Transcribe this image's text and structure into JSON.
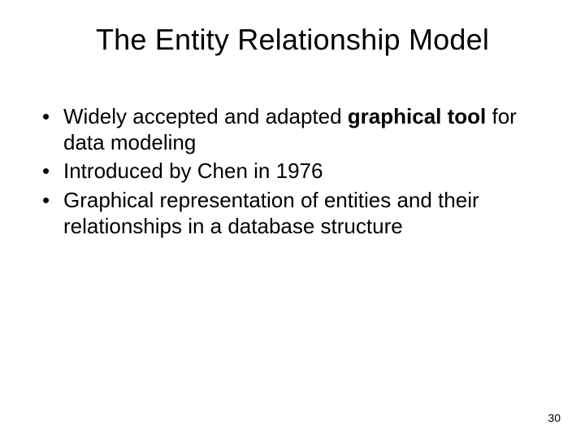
{
  "title": "The Entity Relationship Model",
  "bullets": [
    {
      "pre": "Widely accepted and adapted ",
      "bold": "graphical tool",
      "post": " for data modeling"
    },
    {
      "pre": "Introduced by Chen in 1976",
      "bold": "",
      "post": ""
    },
    {
      "pre": "Graphical representation of entities and their relationships in a database structure",
      "bold": "",
      "post": ""
    }
  ],
  "page_number": "30",
  "style": {
    "background_color": "#ffffff",
    "text_color": "#000000",
    "title_fontsize": 36,
    "body_fontsize": 26,
    "page_number_fontsize": 14,
    "font_family": "Arial"
  }
}
